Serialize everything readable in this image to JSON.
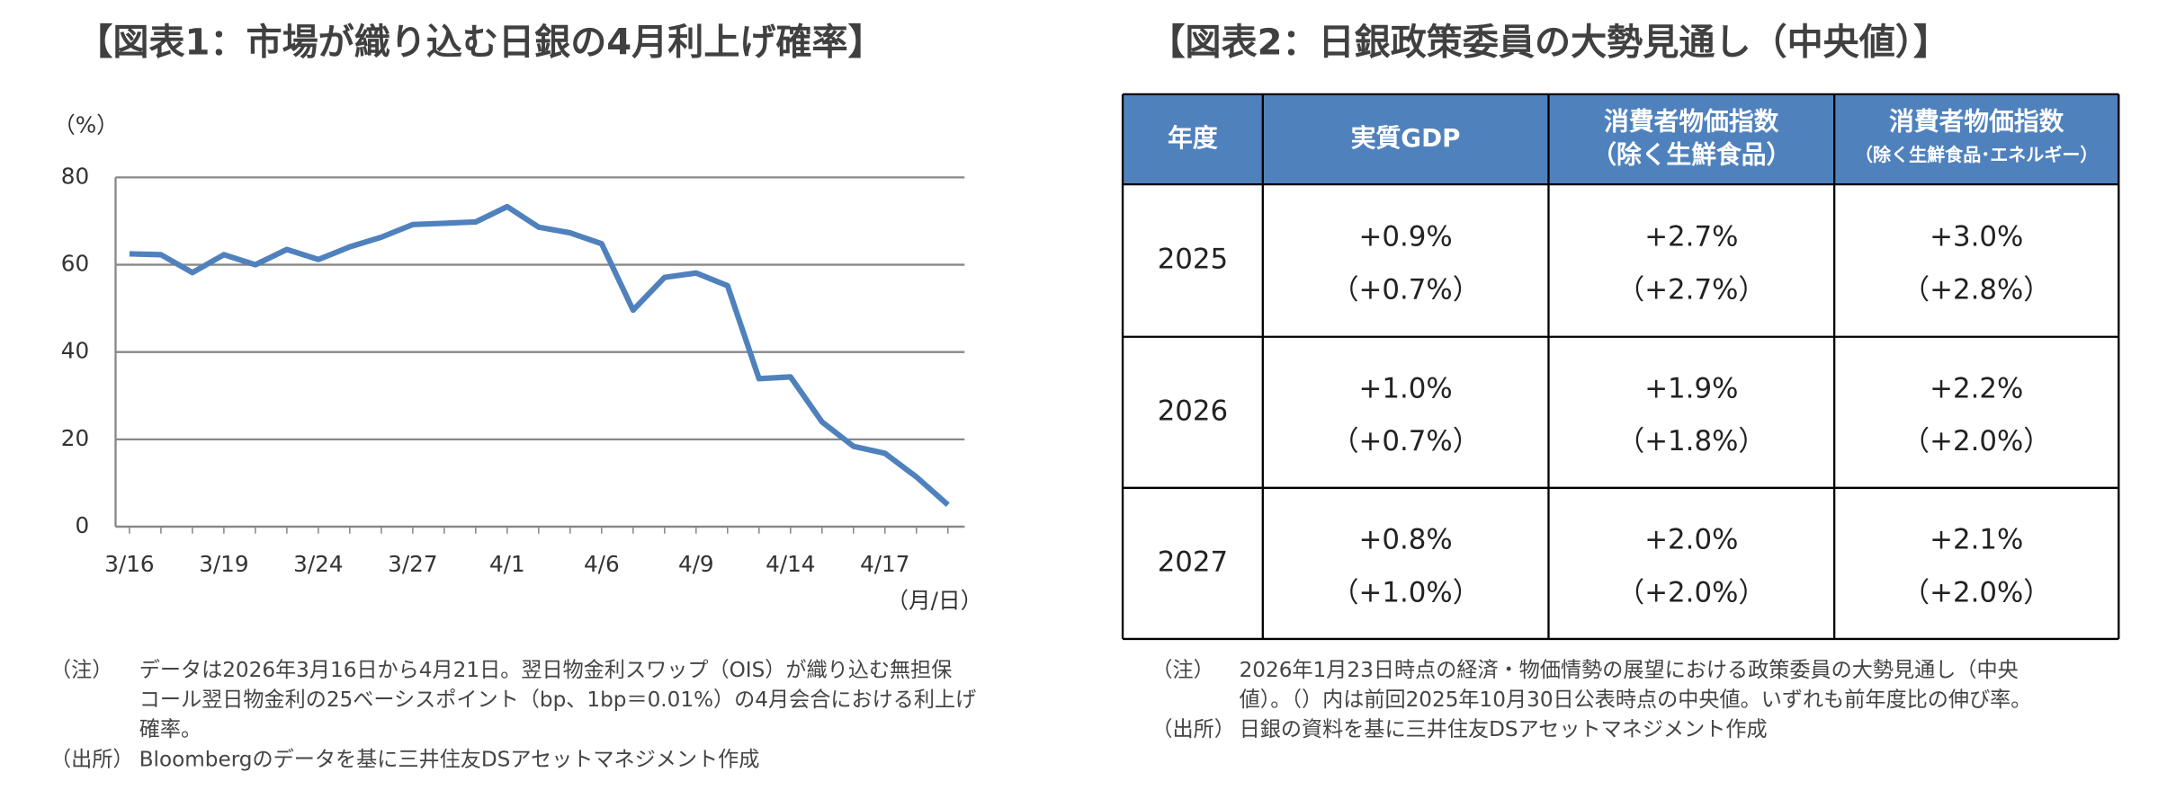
{
  "chart_data": {
    "type": "line",
    "title": "【図表1：市場が織り込む日銀の4月利上げ確率】",
    "y_label": "（%）",
    "x_label": "（月/日）",
    "categories": [
      "3/16",
      null,
      null,
      "3/19",
      null,
      null,
      "3/24",
      null,
      null,
      "3/27",
      null,
      null,
      "4/1",
      null,
      null,
      "4/6",
      null,
      null,
      "4/9",
      null,
      null,
      "4/14",
      null,
      null,
      "4/17",
      null,
      null
    ],
    "values": [
      62.5,
      62.3,
      58.2,
      62.3,
      60,
      63.5,
      61.2,
      64.1,
      66.3,
      69.2,
      69.5,
      69.8,
      73.3,
      68.6,
      67.3,
      64.8,
      49.6,
      57.1,
      58.1,
      55.2,
      33.9,
      34.3,
      24,
      18.4,
      16.8,
      11.4,
      5
    ],
    "color": "#4f81bd",
    "ylim": [
      0,
      80
    ],
    "yticks": [
      0,
      20,
      40,
      60,
      80
    ],
    "grid": true,
    "notes": [
      {
        "label": "（注）",
        "lines": [
          "データは2026年3月16日から4月21日。翌日物金利スワップ（OIS）が織り込む無担保",
          "コール翌日物金利の25ベーシスポイント（bp、1bp＝0.01%）の4月会合における利上げ",
          "確率。"
        ]
      },
      {
        "label": "（出所）",
        "lines": [
          "Bloombergのデータを基に三井住友DSアセットマネジメント作成"
        ]
      }
    ]
  },
  "table": {
    "title": "【図表2：日銀政策委員の大勢見通し（中央値）】",
    "header": [
      [
        "年度"
      ],
      [
        "実質GDP"
      ],
      [
        "消費者物価指数",
        "（除く生鮮食品）"
      ],
      [
        "消費者物価指数",
        "（除く生鮮食品･エネルギー）"
      ]
    ],
    "rows": [
      [
        "2025",
        [
          "+0.9%",
          "（+0.7%）"
        ],
        [
          "+2.7%",
          "（+2.7%）"
        ],
        [
          "+3.0%",
          "（+2.8%）"
        ]
      ],
      [
        "2026",
        [
          "+1.0%",
          "（+0.7%）"
        ],
        [
          "+1.9%",
          "（+1.8%）"
        ],
        [
          "+2.2%",
          "（+2.0%）"
        ]
      ],
      [
        "2027",
        [
          "+0.8%",
          "（+1.0%）"
        ],
        [
          "+2.0%",
          "（+2.0%）"
        ],
        [
          "+2.1%",
          "（+2.0%）"
        ]
      ]
    ],
    "notes": [
      {
        "label": "（注）",
        "lines": [
          "2026年1月23日時点の経済・物価情勢の展望における政策委員の大勢見通し（中央",
          "値）。（）内は前回2025年10月30日公表時点の中央値。いずれも前年度比の伸び率。"
        ]
      },
      {
        "label": "（出所）",
        "lines": [
          "日銀の資料を基に三井住友DSアセットマネジメント作成"
        ]
      }
    ]
  }
}
